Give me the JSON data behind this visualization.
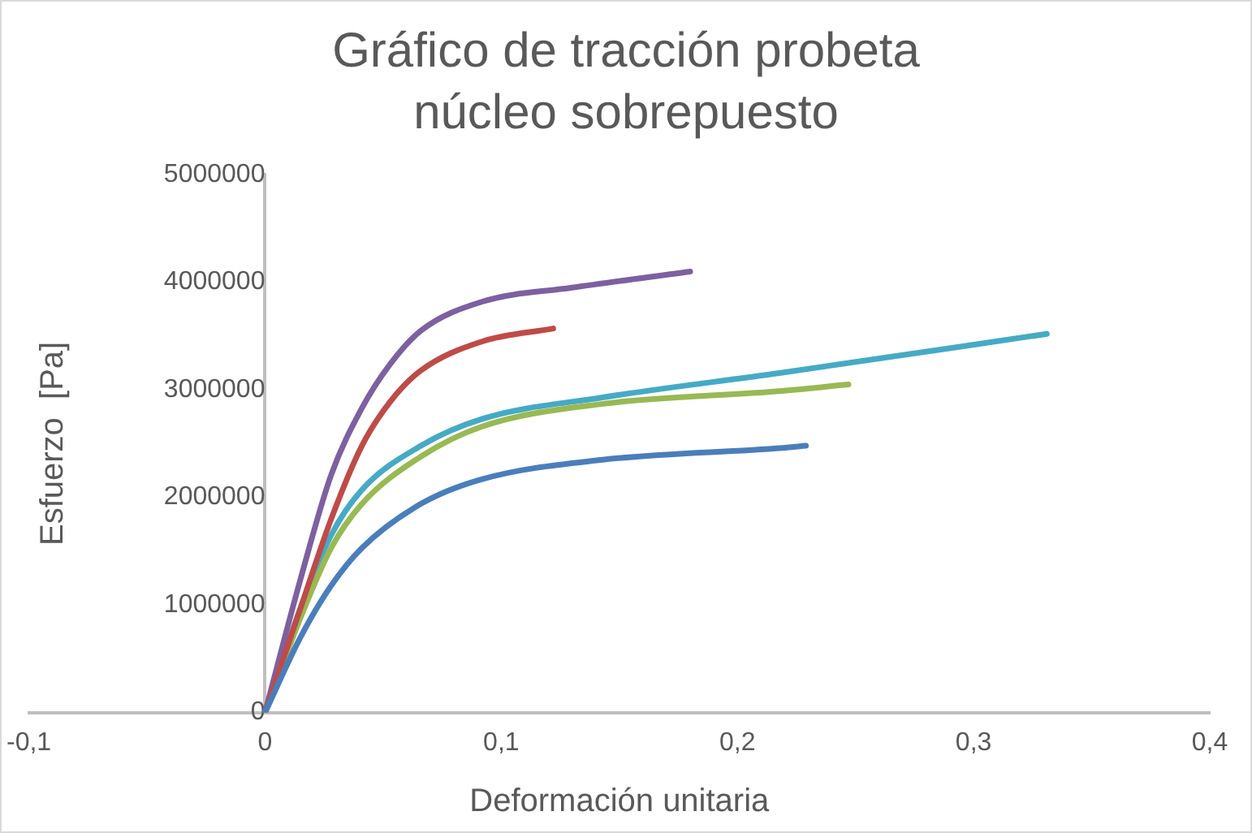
{
  "chart_data": {
    "type": "line",
    "title": "Gráfico de tracción probeta núcleo sobrepuesto",
    "xlabel": "Deformación unitaria",
    "ylabel": "Esfuerzo  [Pa]",
    "xlim": [
      -0.1,
      0.4
    ],
    "xticks": [
      {
        "value": -0.1,
        "label": "-0,1"
      },
      0,
      {
        "value": 0.1,
        "label": "0,1"
      },
      {
        "value": 0.2,
        "label": "0,2"
      },
      {
        "value": 0.3,
        "label": "0,3"
      },
      {
        "value": 0.4,
        "label": "0,4"
      }
    ],
    "ylim": [
      0,
      5000000
    ],
    "yticks": [
      0,
      1000000,
      2000000,
      3000000,
      4000000,
      5000000
    ],
    "grid": false,
    "legend": false,
    "marker": "none",
    "line_style": "solid",
    "series": [
      {
        "color": "#4a7ebb",
        "x": [
          0,
          0.015,
          0.028,
          0.041,
          0.066,
          0.092,
          0.143,
          0.219,
          0.229
        ],
        "values": [
          0,
          700000,
          1180000,
          1530000,
          1940000,
          2170000,
          2350000,
          2460000,
          2480000
        ]
      },
      {
        "color": "#be4b48",
        "x": [
          0,
          0.015,
          0.028,
          0.041,
          0.053,
          0.066,
          0.092,
          0.122
        ],
        "values": [
          0,
          970000,
          1800000,
          2480000,
          2890000,
          3180000,
          3450000,
          3570000
        ]
      },
      {
        "color": "#98b954",
        "x": [
          0,
          0.015,
          0.028,
          0.041,
          0.066,
          0.092,
          0.143,
          0.219,
          0.247
        ],
        "values": [
          0,
          880000,
          1530000,
          1940000,
          2380000,
          2660000,
          2870000,
          2990000,
          3050000
        ]
      },
      {
        "color": "#7d60a0",
        "x": [
          0,
          0.015,
          0.028,
          0.041,
          0.053,
          0.066,
          0.092,
          0.13,
          0.18
        ],
        "values": [
          0,
          1240000,
          2210000,
          2830000,
          3240000,
          3550000,
          3820000,
          3950000,
          4100000
        ]
      },
      {
        "color": "#46aac5",
        "x": [
          0,
          0.015,
          0.028,
          0.041,
          0.066,
          0.092,
          0.143,
          0.219,
          0.331
        ],
        "values": [
          0,
          970000,
          1650000,
          2070000,
          2480000,
          2730000,
          2930000,
          3160000,
          3520000
        ]
      }
    ]
  }
}
